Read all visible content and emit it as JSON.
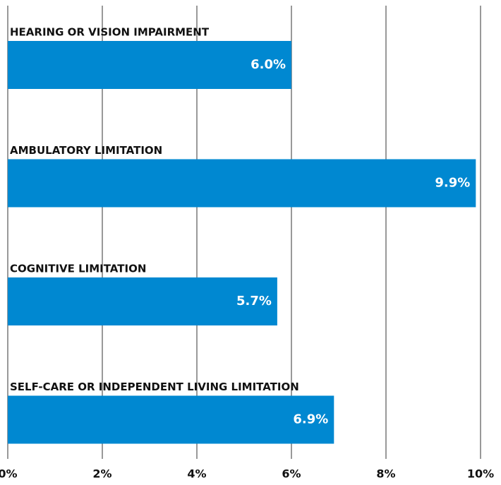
{
  "chart_data": {
    "type": "hbar",
    "categories": [
      "HEARING OR VISION IMPAIRMENT",
      "AMBULATORY LIMITATION",
      "COGNITIVE LIMITATION",
      "SELF-CARE OR INDEPENDENT LIVING LIMITATION"
    ],
    "values": [
      6.0,
      9.9,
      5.7,
      6.9
    ],
    "value_labels": [
      "6.0%",
      "9.9%",
      "5.7%",
      "6.9%"
    ],
    "color": "#0088d1",
    "xlim": [
      0,
      10
    ],
    "xticks": [
      {
        "value": 0,
        "label": "0%"
      },
      {
        "value": 2,
        "label": "2%"
      },
      {
        "value": 4,
        "label": "4%"
      },
      {
        "value": 6,
        "label": "6%"
      },
      {
        "value": 8,
        "label": "8%"
      },
      {
        "value": 10,
        "label": "10%"
      }
    ],
    "grid": true
  }
}
